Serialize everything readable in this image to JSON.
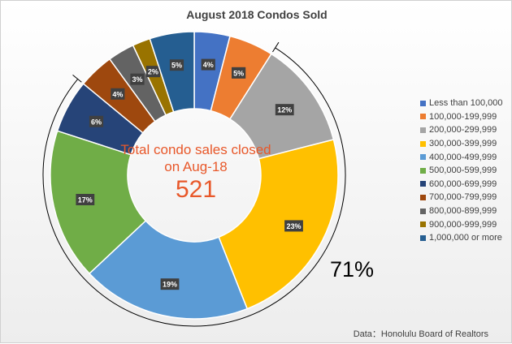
{
  "chart_data": {
    "type": "pie",
    "title": "August 2018 Condos Sold",
    "center_caption": "Total condo sales closed on Aug-18",
    "center_total": "521",
    "callout": "71%",
    "source": "Data：Honolulu Board of Realtors",
    "legend_position": "right",
    "slices": [
      {
        "label": "Less than 100,000",
        "value": 4,
        "display": "4%",
        "color": "#4472c4"
      },
      {
        "label": "100,000-199,999",
        "value": 5,
        "display": "5%",
        "color": "#ed7d31"
      },
      {
        "label": "200,000-299,999",
        "value": 12,
        "display": "12%",
        "color": "#a5a5a5"
      },
      {
        "label": "300,000-399,999",
        "value": 23,
        "display": "23%",
        "color": "#ffc000"
      },
      {
        "label": "400,000-499,999",
        "value": 19,
        "display": "19%",
        "color": "#5b9bd5"
      },
      {
        "label": "500,000-599,999",
        "value": 17,
        "display": "17%",
        "color": "#70ad47"
      },
      {
        "label": "600,000-699,999",
        "value": 6,
        "display": "6%",
        "color": "#264478"
      },
      {
        "label": "700,000-799,999",
        "value": 4,
        "display": "4%",
        "color": "#9e480e"
      },
      {
        "label": "800,000-899,999",
        "value": 3,
        "display": "3%",
        "color": "#636363"
      },
      {
        "label": "900,000-999,999",
        "value": 2,
        "display": "2%",
        "color": "#997300"
      },
      {
        "label": "1,000,000 or more",
        "value": 5,
        "display": "5%",
        "color": "#255e91"
      }
    ]
  }
}
